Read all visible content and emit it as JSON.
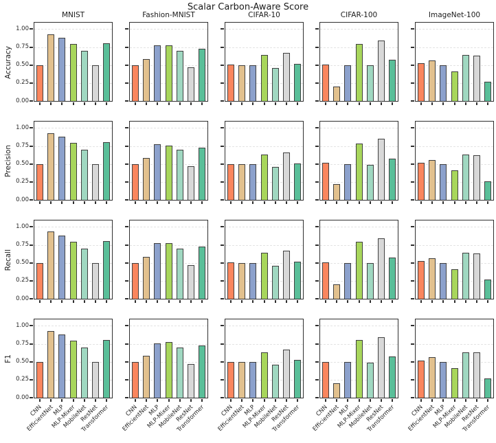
{
  "title": "Scalar Carbon-Aware Score",
  "chart_data": {
    "type": "bar",
    "layout": "4 rows x 5 columns of subplots, shared category x-axis, y range 0-1, horizontal dashed gridlines",
    "row_metrics": [
      "Accuracy",
      "Precision",
      "Recall",
      "F1"
    ],
    "col_datasets": [
      "MNIST",
      "Fashion-MNIST",
      "CIFAR-10",
      "CIFAR-100",
      "ImageNet-100"
    ],
    "categories": [
      "CNN",
      "EfficientNet",
      "MLP",
      "MLP-Mixer",
      "MobileNet",
      "ResNet",
      "Transformer"
    ],
    "bar_colors": [
      "#fa865e",
      "#e2c18e",
      "#8ca1cc",
      "#a8d65c",
      "#a0d8c1",
      "#d8d8d8",
      "#5abf99"
    ],
    "bar_edge_color": "#3f3f3f",
    "ylim": [
      0,
      1.09
    ],
    "yticks": [
      "0.00",
      "0.25",
      "0.50",
      "0.75",
      "1.00"
    ],
    "ytick_values": [
      0,
      0.25,
      0.5,
      0.75,
      1.0
    ],
    "values_by_metric": {
      "Accuracy": {
        "MNIST": [
          0.5,
          0.93,
          0.88,
          0.79,
          0.7,
          0.5,
          0.8
        ],
        "Fashion-MNIST": [
          0.5,
          0.58,
          0.77,
          0.77,
          0.7,
          0.47,
          0.73
        ],
        "CIFAR-10": [
          0.51,
          0.5,
          0.5,
          0.64,
          0.46,
          0.67,
          0.52
        ],
        "CIFAR-100": [
          0.51,
          0.2,
          0.5,
          0.79,
          0.5,
          0.84,
          0.57
        ],
        "ImageNet-100": [
          0.53,
          0.56,
          0.5,
          0.41,
          0.64,
          0.63,
          0.27
        ]
      },
      "Precision": {
        "MNIST": [
          0.5,
          0.93,
          0.88,
          0.79,
          0.7,
          0.5,
          0.8
        ],
        "Fashion-MNIST": [
          0.5,
          0.58,
          0.77,
          0.76,
          0.7,
          0.47,
          0.73
        ],
        "CIFAR-10": [
          0.5,
          0.5,
          0.5,
          0.63,
          0.46,
          0.66,
          0.51
        ],
        "CIFAR-100": [
          0.52,
          0.22,
          0.5,
          0.78,
          0.49,
          0.85,
          0.57
        ],
        "ImageNet-100": [
          0.52,
          0.55,
          0.5,
          0.41,
          0.63,
          0.62,
          0.26
        ]
      },
      "Recall": {
        "MNIST": [
          0.5,
          0.94,
          0.88,
          0.79,
          0.7,
          0.5,
          0.8
        ],
        "Fashion-MNIST": [
          0.5,
          0.58,
          0.77,
          0.77,
          0.7,
          0.47,
          0.73
        ],
        "CIFAR-10": [
          0.51,
          0.5,
          0.5,
          0.64,
          0.46,
          0.67,
          0.52
        ],
        "CIFAR-100": [
          0.51,
          0.2,
          0.5,
          0.79,
          0.5,
          0.84,
          0.57
        ],
        "ImageNet-100": [
          0.53,
          0.56,
          0.5,
          0.41,
          0.64,
          0.63,
          0.27
        ]
      },
      "F1": {
        "MNIST": [
          0.5,
          0.93,
          0.88,
          0.79,
          0.7,
          0.5,
          0.8
        ],
        "Fashion-MNIST": [
          0.5,
          0.58,
          0.76,
          0.77,
          0.7,
          0.47,
          0.73
        ],
        "CIFAR-10": [
          0.5,
          0.5,
          0.5,
          0.63,
          0.46,
          0.67,
          0.53
        ],
        "CIFAR-100": [
          0.5,
          0.2,
          0.5,
          0.8,
          0.49,
          0.84,
          0.57
        ],
        "ImageNet-100": [
          0.52,
          0.56,
          0.5,
          0.41,
          0.63,
          0.63,
          0.27
        ]
      }
    }
  }
}
